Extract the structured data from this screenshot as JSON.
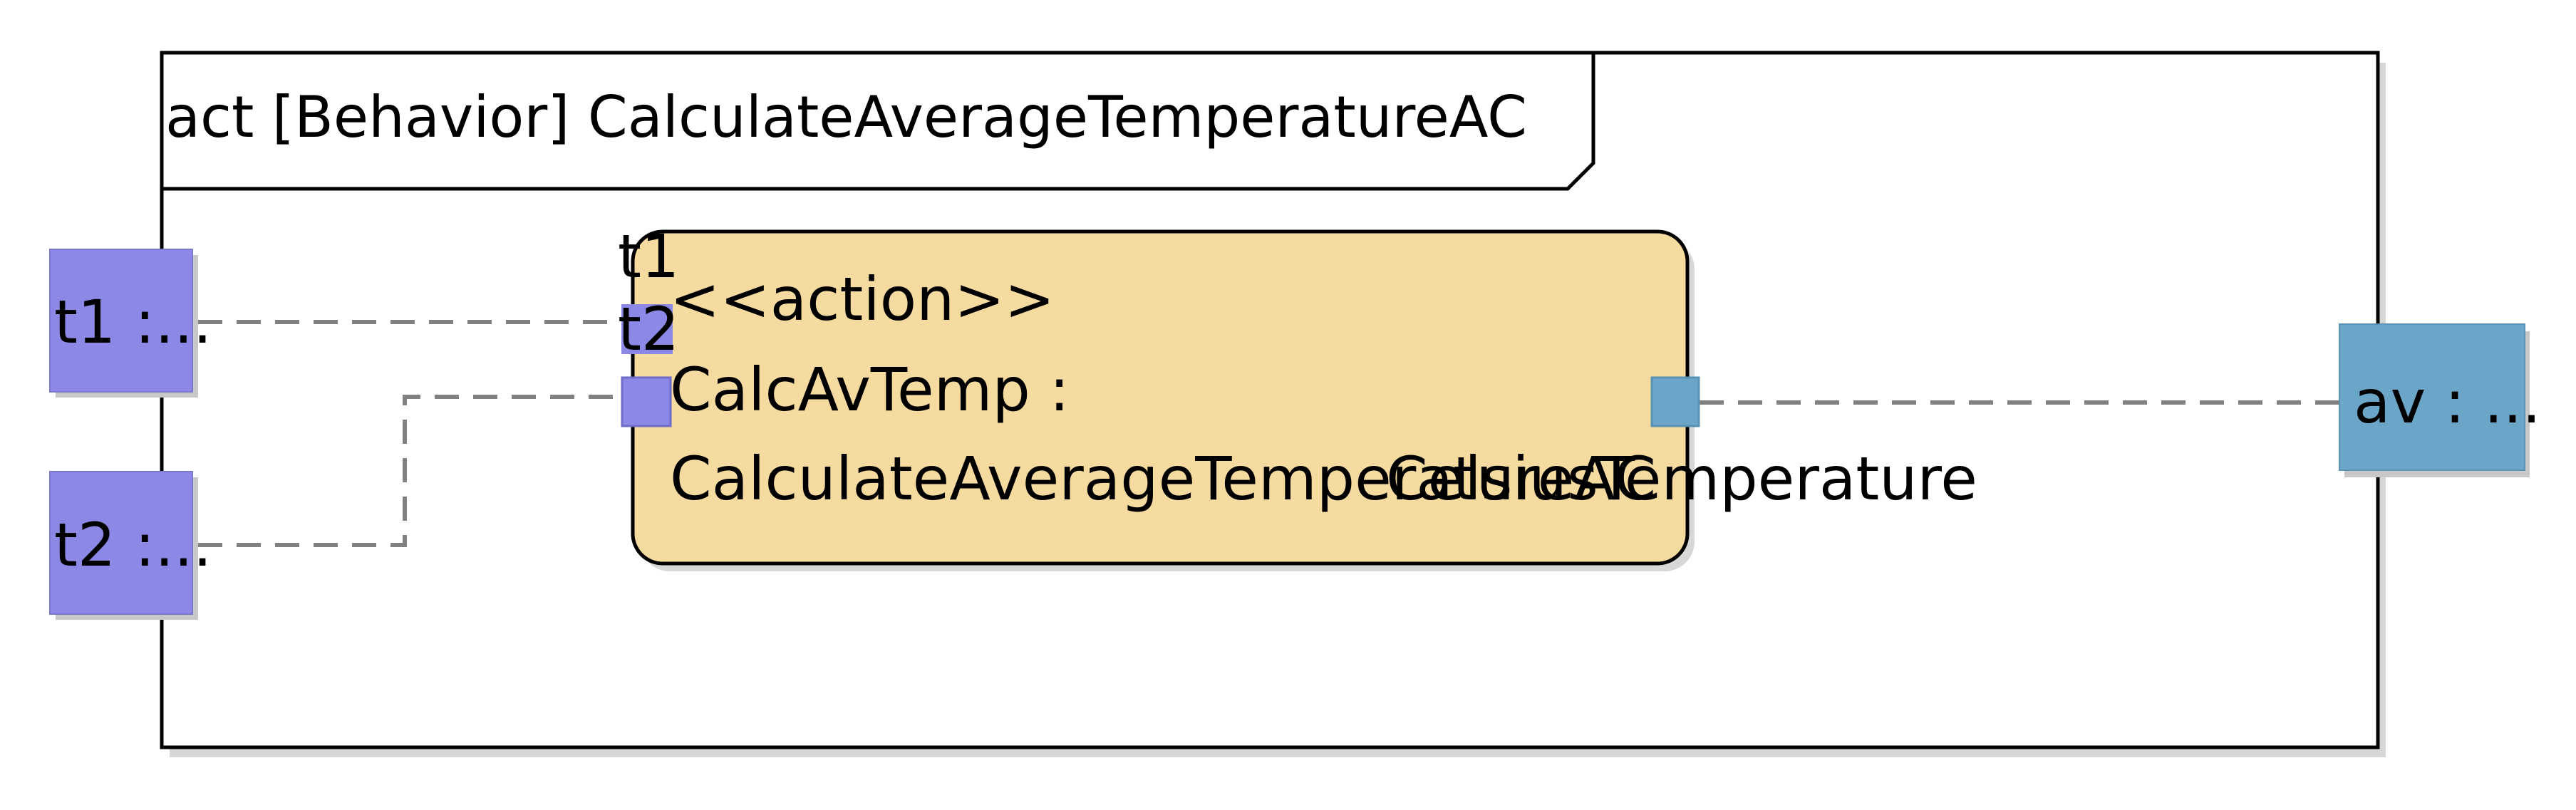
{
  "diagram": {
    "frame": {
      "title": "act [Behavior] CalculateAverageTemperatureAC"
    },
    "params": {
      "t1": {
        "label": "t1 :..."
      },
      "t2": {
        "label": "t2 :..."
      },
      "av": {
        "label": "av : ..."
      }
    },
    "action": {
      "stereotype": "<<action>>",
      "name_line1": "CalcAvTemp :",
      "name_line2": "CalculateAverageTemperatureAC",
      "pins": {
        "in1": "t1",
        "in2": "t2",
        "out": "CelsiusTemperature"
      }
    },
    "colors": {
      "param_fill": "#8c89e6",
      "param_out_fill": "#6ba6c8",
      "action_fill": "#f6dba0",
      "edge": "#808080",
      "shadow": "#d0d0d0"
    }
  }
}
